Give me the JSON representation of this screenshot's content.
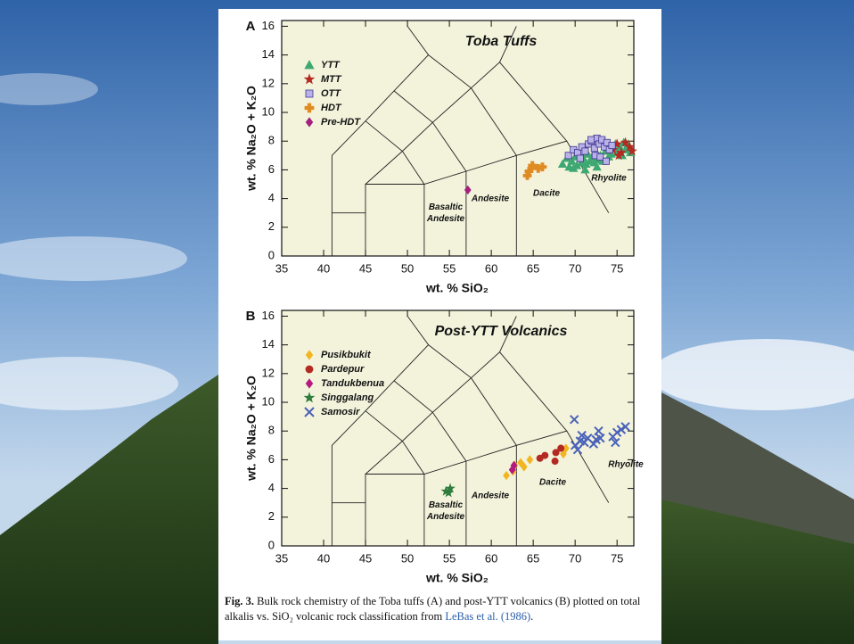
{
  "chart_data": [
    {
      "type": "scatter",
      "panel": "A",
      "title": "Toba Tuffs",
      "x_label": "wt. % SiO₂",
      "y_label": "wt. % Na₂O + K₂O",
      "xlim": [
        35,
        77
      ],
      "ylim": [
        0,
        16.4
      ],
      "xticks": [
        35,
        40,
        45,
        50,
        55,
        60,
        65,
        70,
        75
      ],
      "yticks": [
        0,
        2,
        4,
        6,
        8,
        10,
        12,
        14,
        16
      ],
      "annotations": [
        "Basaltic Andesite",
        "Andesite",
        "Dacite",
        "Rhyolite"
      ],
      "boundaries": [
        {
          "x": [
            41,
            41,
            45,
            48.4,
            52.5,
            50
          ],
          "y": [
            0,
            7,
            9.4,
            11.5,
            14,
            16
          ]
        },
        {
          "x": [
            41,
            45
          ],
          "y": [
            3,
            3
          ]
        },
        {
          "x": [
            45,
            45,
            52,
            57,
            63,
            69,
            74
          ],
          "y": [
            0,
            5,
            5,
            5.9,
            7,
            8,
            3
          ]
        },
        {
          "x": [
            52,
            52
          ],
          "y": [
            0,
            5
          ]
        },
        {
          "x": [
            57,
            57
          ],
          "y": [
            0,
            5.9
          ]
        },
        {
          "x": [
            63,
            63
          ],
          "y": [
            0,
            7
          ]
        },
        {
          "x": [
            45,
            49.4,
            53,
            57.6,
            61,
            63
          ],
          "y": [
            5,
            7.3,
            9.3,
            11.7,
            13.5,
            16
          ]
        },
        {
          "x": [
            52,
            49.4,
            45
          ],
          "y": [
            5,
            7.3,
            9.4
          ]
        },
        {
          "x": [
            57,
            53,
            48.4
          ],
          "y": [
            5.9,
            9.3,
            11.5
          ]
        },
        {
          "x": [
            63,
            57.6,
            52.5
          ],
          "y": [
            7,
            11.7,
            14
          ]
        },
        {
          "x": [
            69,
            61
          ],
          "y": [
            8,
            13.5
          ]
        }
      ],
      "series": [
        {
          "name": "YTT",
          "color": "#3ea872",
          "marker": "triangle",
          "x": [
            68.5,
            69,
            69.3,
            69.6,
            70,
            70.2,
            70.5,
            70.8,
            71,
            71.3,
            71.5,
            71.8,
            72,
            72.3,
            72.5,
            72.8,
            73,
            73.3,
            73.6,
            74,
            74.3,
            74.6,
            75,
            75.3,
            75.6,
            76,
            76.3,
            76.6,
            69.8,
            71.2,
            72.6,
            74.8,
            75.8
          ],
          "values": [
            6.4,
            6.8,
            6.2,
            6.6,
            6.9,
            6.3,
            7.0,
            6.5,
            6.8,
            6.4,
            7.1,
            6.6,
            6.9,
            6.5,
            7.2,
            6.7,
            7.0,
            6.6,
            7.3,
            6.9,
            7.1,
            7.5,
            7.2,
            7.6,
            7.0,
            7.4,
            7.8,
            7.2,
            6.1,
            6.0,
            6.2,
            7.8,
            7.9
          ]
        },
        {
          "name": "MTT",
          "color": "#b32a22",
          "marker": "star",
          "x": [
            74.5,
            75,
            75.5,
            76,
            76.5,
            76.8,
            75.2
          ],
          "values": [
            7.4,
            7.8,
            7.2,
            7.9,
            7.6,
            7.3,
            7.0
          ]
        },
        {
          "name": "OTT",
          "color": "#b9b2e8",
          "edgecolor": "#3f3690",
          "marker": "square",
          "x": [
            69.2,
            69.8,
            70.3,
            70.8,
            71.2,
            71.6,
            72,
            72.3,
            72.6,
            72.9,
            73.2,
            73.5,
            73.8,
            74.1,
            72.4,
            71.9,
            73,
            70.6,
            74.4,
            73.7
          ],
          "values": [
            7.0,
            7.4,
            7.2,
            7.6,
            7.3,
            7.8,
            8.0,
            7.5,
            8.2,
            7.8,
            8.1,
            7.6,
            7.9,
            7.4,
            7.0,
            8.1,
            6.9,
            6.8,
            7.7,
            6.6
          ]
        },
        {
          "name": "HDT",
          "color": "#e08a22",
          "marker": "plus",
          "x": [
            64.3,
            64.5,
            64.9,
            65.6,
            66.1
          ],
          "values": [
            5.6,
            5.9,
            6.3,
            6.1,
            6.2
          ]
        },
        {
          "name": "Pre-HDT",
          "color": "#a3207e",
          "marker": "diamond",
          "x": [
            57.2
          ],
          "values": [
            4.6
          ]
        }
      ]
    },
    {
      "type": "scatter",
      "panel": "B",
      "title": "Post-YTT Volcanics",
      "x_label": "wt. % SiO₂",
      "y_label": "wt. % Na₂O + K₂O",
      "xlim": [
        35,
        77
      ],
      "ylim": [
        0,
        16.4
      ],
      "xticks": [
        35,
        40,
        45,
        50,
        55,
        60,
        65,
        70,
        75
      ],
      "yticks": [
        0,
        2,
        4,
        6,
        8,
        10,
        12,
        14,
        16
      ],
      "annotations": [
        "Basaltic Andesite",
        "Andesite",
        "Dacite",
        "Rhyolite"
      ],
      "boundaries": [
        {
          "x": [
            41,
            41,
            45,
            48.4,
            52.5,
            50
          ],
          "y": [
            0,
            7,
            9.4,
            11.5,
            14,
            16
          ]
        },
        {
          "x": [
            41,
            45
          ],
          "y": [
            3,
            3
          ]
        },
        {
          "x": [
            45,
            45,
            52,
            57,
            63,
            69,
            74
          ],
          "y": [
            0,
            5,
            5,
            5.9,
            7,
            8,
            3
          ]
        },
        {
          "x": [
            52,
            52
          ],
          "y": [
            0,
            5
          ]
        },
        {
          "x": [
            57,
            57
          ],
          "y": [
            0,
            5.9
          ]
        },
        {
          "x": [
            63,
            63
          ],
          "y": [
            0,
            7
          ]
        },
        {
          "x": [
            45,
            49.4,
            53,
            57.6,
            61,
            63
          ],
          "y": [
            5,
            7.3,
            9.3,
            11.7,
            13.5,
            16
          ]
        },
        {
          "x": [
            52,
            49.4,
            45
          ],
          "y": [
            5,
            7.3,
            9.4
          ]
        },
        {
          "x": [
            57,
            53,
            48.4
          ],
          "y": [
            5.9,
            9.3,
            11.5
          ]
        },
        {
          "x": [
            63,
            57.6,
            52.5
          ],
          "y": [
            7,
            11.7,
            14
          ]
        },
        {
          "x": [
            69,
            61
          ],
          "y": [
            8,
            13.5
          ]
        }
      ],
      "series": [
        {
          "name": "Pusikbukit",
          "color": "#f2b522",
          "marker": "diamond",
          "x": [
            61.8,
            62.6,
            62.8,
            63.5,
            63.9,
            64.6,
            68.6,
            68.9
          ],
          "values": [
            4.9,
            5.2,
            5.6,
            5.8,
            5.5,
            6.0,
            6.4,
            6.8
          ]
        },
        {
          "name": "Pardepur",
          "color": "#b32a22",
          "marker": "circle",
          "x": [
            65.8,
            66.4,
            67.7,
            67.6,
            68.3
          ],
          "values": [
            6.1,
            6.3,
            6.5,
            5.9,
            6.8
          ]
        },
        {
          "name": "Tandukbenua",
          "color": "#b3197e",
          "marker": "diamond",
          "x": [
            62.5,
            62.7
          ],
          "values": [
            5.3,
            5.6
          ]
        },
        {
          "name": "Singgalang",
          "color": "#2f7d3c",
          "marker": "star",
          "x": [
            54.6,
            55.1,
            54.9
          ],
          "values": [
            3.8,
            4.0,
            3.7
          ]
        },
        {
          "name": "Samosir",
          "color": "#4a62b8",
          "marker": "cross",
          "x": [
            69.9,
            70,
            70.3,
            70.8,
            70.6,
            71.1,
            71.5,
            72.2,
            72.5,
            72.8,
            73,
            74.5,
            75,
            75.5,
            76,
            74.8
          ],
          "values": [
            8.8,
            7.0,
            6.7,
            7.7,
            7.3,
            7.2,
            7.5,
            7.1,
            7.4,
            8.0,
            7.5,
            7.6,
            7.9,
            8.1,
            8.3,
            7.2
          ]
        }
      ]
    }
  ],
  "caption": {
    "label": "Fig. 3.",
    "text": "Bulk rock chemistry of the Toba tuffs (A) and post-YTT volcanics (B) plotted on total alkalis vs. SiO₂ volcanic rock classification from",
    "link": "LeBas et al. (1986)",
    "end": "."
  }
}
